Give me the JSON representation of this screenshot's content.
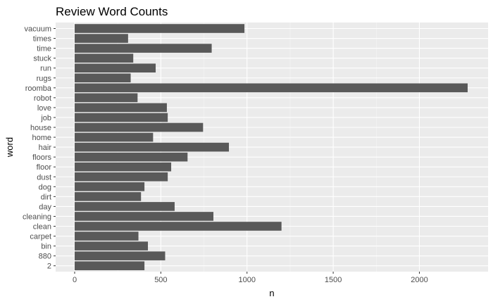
{
  "chart_data": {
    "type": "bar",
    "orientation": "horizontal",
    "title": "Review Word Counts",
    "xlabel": "n",
    "ylabel": "word",
    "xlim": [
      0,
      2280
    ],
    "x_ticks": [
      0,
      500,
      1000,
      1500,
      2000
    ],
    "grid": true,
    "panel_background": "#ebebeb",
    "bar_color": "#595959",
    "categories": [
      "vacuum",
      "times",
      "time",
      "stuck",
      "run",
      "rugs",
      "roomba",
      "robot",
      "love",
      "job",
      "house",
      "home",
      "hair",
      "floors",
      "floor",
      "dust",
      "dog",
      "dirt",
      "day",
      "cleaning",
      "clean",
      "carpet",
      "bin",
      "880",
      "2"
    ],
    "values": [
      985,
      310,
      795,
      340,
      470,
      325,
      2280,
      365,
      535,
      540,
      745,
      455,
      895,
      655,
      560,
      540,
      405,
      385,
      580,
      805,
      1200,
      370,
      425,
      525,
      405
    ]
  }
}
